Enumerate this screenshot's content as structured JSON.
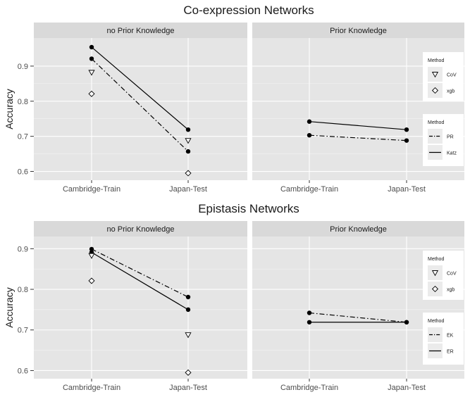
{
  "chart_data": [
    {
      "type": "line",
      "title": "Co-expression Networks",
      "ylabel": "Accuracy",
      "ylim": [
        0.575,
        0.98
      ],
      "yticks": [
        0.6,
        0.7,
        0.8,
        0.9
      ],
      "categories": [
        "Cambridge-Train",
        "Japan-Test"
      ],
      "grid": true,
      "panels": [
        {
          "strip": "no Prior Knowledge",
          "series": [
            {
              "name": "Katz",
              "kind": "line",
              "linestyle": "solid",
              "values": [
                0.954,
                0.719
              ]
            },
            {
              "name": "PR",
              "kind": "line",
              "linestyle": "dashdot",
              "values": [
                0.921,
                0.657
              ]
            },
            {
              "name": "CoV",
              "kind": "point",
              "marker": "triangle-down",
              "values": [
                0.882,
                0.688
              ]
            },
            {
              "name": "xgb",
              "kind": "point",
              "marker": "diamond",
              "values": [
                0.821,
                0.595
              ]
            }
          ]
        },
        {
          "strip": "Prior Knowledge",
          "series": [
            {
              "name": "Katz",
              "kind": "line",
              "linestyle": "solid",
              "values": [
                0.742,
                0.719
              ]
            },
            {
              "name": "PR",
              "kind": "line",
              "linestyle": "dashdot",
              "values": [
                0.703,
                0.688
              ]
            }
          ]
        }
      ],
      "legends": [
        {
          "title": "Method",
          "items": [
            {
              "label": "CoV",
              "symbol": "triangle-down"
            },
            {
              "label": "xgb",
              "symbol": "diamond"
            }
          ]
        },
        {
          "title": "Method",
          "items": [
            {
              "label": "PR",
              "symbol": "dashdot"
            },
            {
              "label": "Katz",
              "symbol": "solid"
            }
          ]
        }
      ],
      "legend_position": "right"
    },
    {
      "type": "line",
      "title": "Epistasis Networks",
      "ylabel": "Accuracy",
      "ylim": [
        0.58,
        0.93
      ],
      "yticks": [
        0.6,
        0.7,
        0.8,
        0.9
      ],
      "categories": [
        "Cambridge-Train",
        "Japan-Test"
      ],
      "grid": true,
      "panels": [
        {
          "strip": "no Prior Knowledge",
          "series": [
            {
              "name": "EK",
              "kind": "line",
              "linestyle": "dashdot",
              "values": [
                0.899,
                0.781
              ]
            },
            {
              "name": "ER",
              "kind": "line",
              "linestyle": "solid",
              "values": [
                0.891,
                0.75
              ]
            },
            {
              "name": "CoV",
              "kind": "point",
              "marker": "triangle-down",
              "values": [
                0.883,
                0.688
              ]
            },
            {
              "name": "xgb",
              "kind": "point",
              "marker": "diamond",
              "values": [
                0.821,
                0.595
              ]
            }
          ]
        },
        {
          "strip": "Prior Knowledge",
          "series": [
            {
              "name": "EK",
              "kind": "line",
              "linestyle": "dashdot",
              "values": [
                0.742,
                0.719
              ]
            },
            {
              "name": "ER",
              "kind": "line",
              "linestyle": "solid",
              "values": [
                0.719,
                0.719
              ]
            }
          ]
        }
      ],
      "legends": [
        {
          "title": "Method",
          "items": [
            {
              "label": "CoV",
              "symbol": "triangle-down"
            },
            {
              "label": "xgb",
              "symbol": "diamond"
            }
          ]
        },
        {
          "title": "Method",
          "items": [
            {
              "label": "EK",
              "symbol": "dashdot"
            },
            {
              "label": "ER",
              "symbol": "solid"
            }
          ]
        }
      ],
      "legend_position": "right"
    }
  ],
  "colors": {
    "panel_background": "#e5e5e5",
    "strip_background": "#d9d9d9",
    "grid": "#ffffff",
    "ink": "#000000"
  }
}
